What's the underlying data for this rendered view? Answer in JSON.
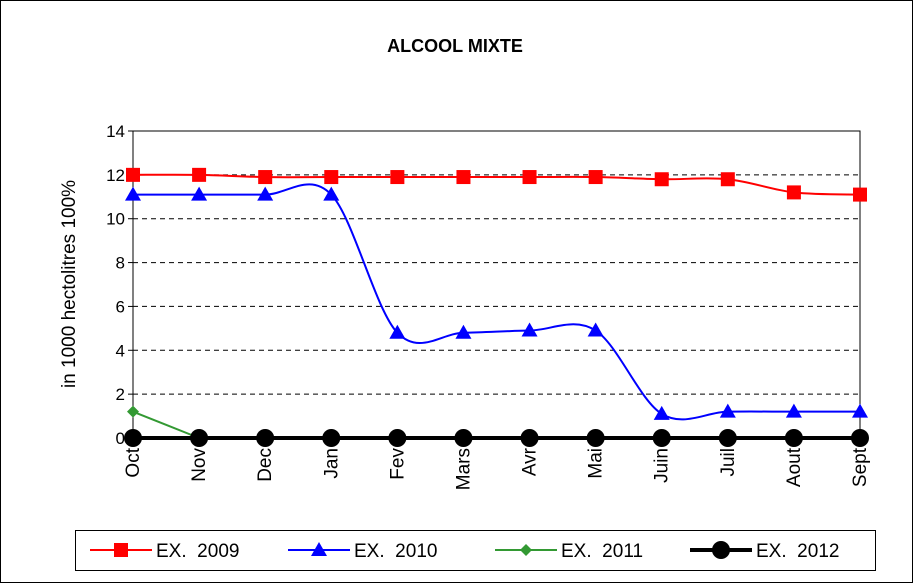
{
  "chart_data": {
    "type": "line",
    "title": "ALCOOL MIXTE",
    "y_label": "in 1000 hectolitres 100%",
    "categories": [
      "Oct",
      "Nov",
      "Dec",
      "Jan",
      "Fev",
      "Mars",
      "Avr",
      "Mai",
      "Juin",
      "Juil",
      "Aout",
      "Sept"
    ],
    "series": [
      {
        "name": "EX.  2009",
        "color": "#ff0000",
        "marker": "square",
        "values": [
          12,
          12,
          11.9,
          11.9,
          11.9,
          11.9,
          11.9,
          11.9,
          11.8,
          11.8,
          11.2,
          11.1
        ]
      },
      {
        "name": "EX.  2010",
        "color": "#0000ff",
        "marker": "triangle",
        "values": [
          11.1,
          11.1,
          11.1,
          11.1,
          4.8,
          4.8,
          4.9,
          4.9,
          1.1,
          1.2,
          1.2,
          1.2
        ]
      },
      {
        "name": "EX.  2011",
        "color": "#339933",
        "marker": "diamond",
        "values": [
          1.2,
          0,
          null,
          null,
          null,
          null,
          null,
          null,
          null,
          null,
          null,
          null
        ]
      },
      {
        "name": "EX.  2012",
        "color": "#000000",
        "marker": "circle",
        "values": [
          0,
          0,
          0,
          0,
          0,
          0,
          0,
          0,
          0,
          0,
          0,
          0
        ]
      }
    ],
    "ylim": [
      0,
      14
    ],
    "yticks": [
      0,
      2,
      4,
      6,
      8,
      10,
      12,
      14
    ],
    "grid": true,
    "legend": "bottom"
  }
}
